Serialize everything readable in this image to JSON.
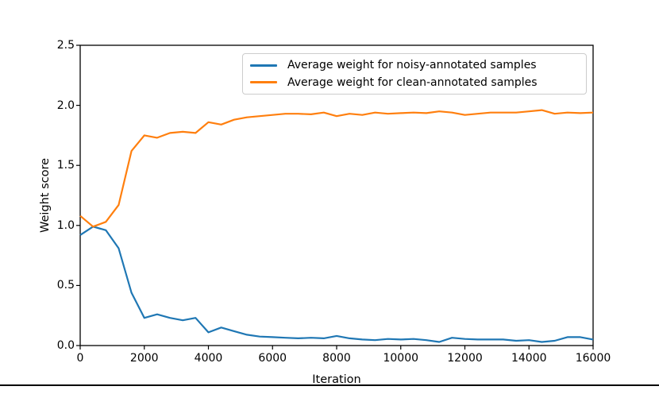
{
  "chart_data": {
    "type": "line",
    "title": "",
    "xlabel": "Iteration",
    "ylabel": "Weight score",
    "xlim": [
      0,
      16000
    ],
    "ylim": [
      0.0,
      2.5
    ],
    "x_ticks": [
      0,
      2000,
      4000,
      6000,
      8000,
      10000,
      12000,
      14000,
      16000
    ],
    "x_tick_labels": [
      "0",
      "2000",
      "4000",
      "6000",
      "8000",
      "10000",
      "12000",
      "14000",
      "16000"
    ],
    "y_ticks": [
      0.0,
      0.5,
      1.0,
      1.5,
      2.0,
      2.5
    ],
    "y_tick_labels": [
      "0.0",
      "0.5",
      "1.0",
      "1.5",
      "2.0",
      "2.5"
    ],
    "grid": false,
    "legend_position": "upper right",
    "x": [
      0,
      400,
      800,
      1200,
      1600,
      2000,
      2400,
      2800,
      3200,
      3600,
      4000,
      4400,
      4800,
      5200,
      5600,
      6000,
      6400,
      6800,
      7200,
      7600,
      8000,
      8400,
      8800,
      9200,
      9600,
      10000,
      10400,
      10800,
      11200,
      11600,
      12000,
      12400,
      12800,
      13200,
      13600,
      14000,
      14400,
      14800,
      15200,
      15600,
      16000
    ],
    "series": [
      {
        "name": "Average weight for noisy-annotated samples",
        "color": "#1f77b4",
        "values": [
          0.92,
          0.99,
          0.96,
          0.81,
          0.44,
          0.23,
          0.26,
          0.23,
          0.21,
          0.23,
          0.11,
          0.15,
          0.12,
          0.09,
          0.075,
          0.07,
          0.065,
          0.06,
          0.065,
          0.06,
          0.08,
          0.06,
          0.05,
          0.045,
          0.055,
          0.05,
          0.055,
          0.045,
          0.03,
          0.065,
          0.055,
          0.05,
          0.05,
          0.05,
          0.04,
          0.045,
          0.03,
          0.04,
          0.07,
          0.07,
          0.05
        ]
      },
      {
        "name": "Average weight for clean-annotated samples",
        "color": "#ff7f0e",
        "values": [
          1.08,
          0.99,
          1.03,
          1.17,
          1.62,
          1.75,
          1.73,
          1.77,
          1.78,
          1.77,
          1.86,
          1.84,
          1.88,
          1.9,
          1.91,
          1.92,
          1.93,
          1.93,
          1.925,
          1.94,
          1.91,
          1.93,
          1.92,
          1.94,
          1.93,
          1.935,
          1.94,
          1.935,
          1.95,
          1.94,
          1.92,
          1.93,
          1.94,
          1.94,
          1.94,
          1.95,
          1.96,
          1.93,
          1.94,
          1.935,
          1.94
        ]
      }
    ]
  }
}
